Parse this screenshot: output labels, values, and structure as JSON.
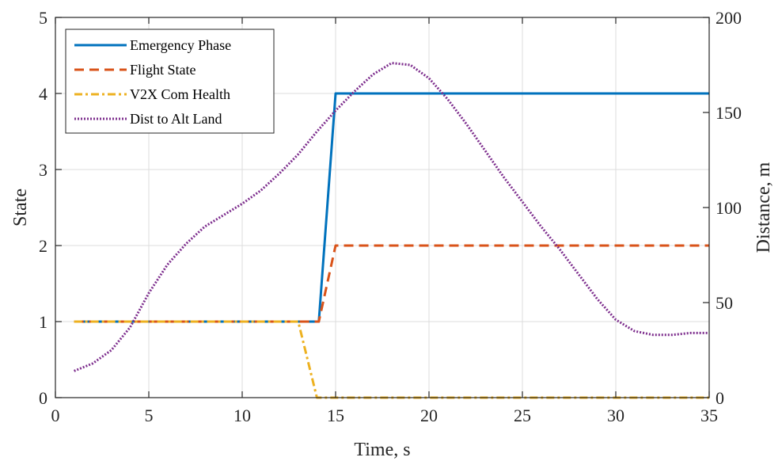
{
  "chart_data": {
    "type": "line",
    "title": "",
    "xlabel": "Time, s",
    "ylabel_left": "State",
    "ylabel_right": "Distance, m",
    "xlim": [
      0,
      35
    ],
    "ylim_left": [
      0,
      5
    ],
    "ylim_right": [
      0,
      200
    ],
    "xticks": [
      "0",
      "5",
      "10",
      "15",
      "20",
      "25",
      "30",
      "35"
    ],
    "yticks_left": [
      "0",
      "1",
      "2",
      "3",
      "4",
      "5"
    ],
    "yticks_right": [
      "0",
      "50",
      "100",
      "150",
      "200"
    ],
    "grid": true,
    "legend_position": "top-left",
    "series": [
      {
        "name": "Emergency Phase",
        "axis": "left",
        "color": "#0072BD",
        "style": "solid",
        "x": [
          1,
          14.1,
          15,
          35
        ],
        "y": [
          1,
          1,
          4,
          4
        ]
      },
      {
        "name": "Flight State",
        "axis": "left",
        "color": "#D95319",
        "style": "dashed",
        "x": [
          1,
          14.1,
          15,
          35
        ],
        "y": [
          1,
          1,
          2,
          2
        ]
      },
      {
        "name": "V2X Com Health",
        "axis": "left",
        "color": "#EDB120",
        "style": "dashdot",
        "x": [
          1,
          13,
          14,
          35
        ],
        "y": [
          1,
          1,
          0,
          0
        ]
      },
      {
        "name": "Dist to Alt Land",
        "axis": "right",
        "color": "#7E2F8E",
        "style": "dotted",
        "x": [
          1,
          2,
          3,
          4,
          5,
          6,
          7,
          8,
          9,
          10,
          11,
          12,
          13,
          14,
          15,
          16,
          17,
          18,
          19,
          20,
          21,
          22,
          23,
          24,
          25,
          26,
          27,
          28,
          29,
          30,
          31,
          32,
          33,
          34,
          35
        ],
        "y": [
          14,
          18,
          25,
          37,
          55,
          70,
          81,
          90,
          96,
          102,
          109,
          118,
          128,
          140,
          151,
          161,
          170,
          176,
          175,
          168,
          157,
          144,
          130,
          116,
          103,
          90,
          78,
          65,
          52,
          41,
          35,
          33,
          33,
          34,
          34
        ]
      }
    ]
  }
}
